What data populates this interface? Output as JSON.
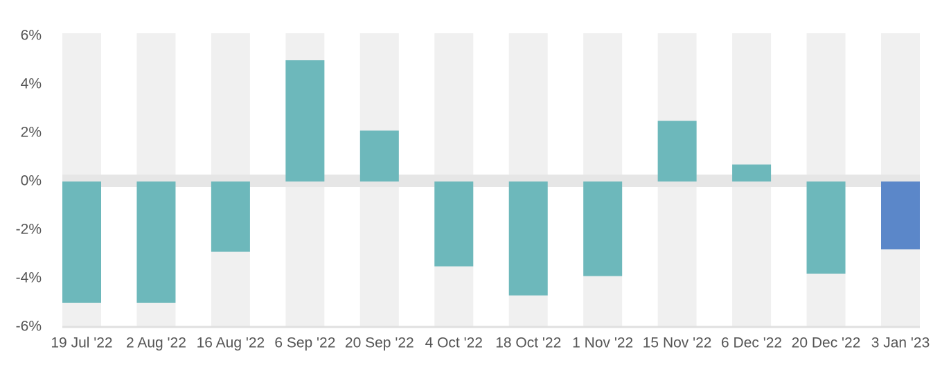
{
  "chart_data": {
    "type": "bar",
    "categories": [
      "19 Jul '22",
      "2 Aug '22",
      "16 Aug '22",
      "6 Sep '22",
      "20 Sep '22",
      "4 Oct '22",
      "18 Oct '22",
      "1 Nov '22",
      "15 Nov '22",
      "6 Dec '22",
      "20 Dec '22",
      "3 Jan '23"
    ],
    "values": [
      -5.0,
      -5.0,
      -2.9,
      5.0,
      2.1,
      -3.5,
      -4.7,
      -3.9,
      2.5,
      0.7,
      -3.8,
      -2.8
    ],
    "colors": [
      "#6db8bb",
      "#6db8bb",
      "#6db8bb",
      "#6db8bb",
      "#6db8bb",
      "#6db8bb",
      "#6db8bb",
      "#6db8bb",
      "#6db8bb",
      "#6db8bb",
      "#6db8bb",
      "#5b87c9"
    ],
    "ylim": [
      -6,
      6
    ],
    "yticks": [
      {
        "value": -6,
        "label": "-6%"
      },
      {
        "value": -4,
        "label": "-4%"
      },
      {
        "value": -2,
        "label": "-2%"
      },
      {
        "value": 0,
        "label": "0%"
      },
      {
        "value": 2,
        "label": "2%"
      },
      {
        "value": 4,
        "label": "4%"
      },
      {
        "value": 6,
        "label": "6%"
      }
    ]
  }
}
